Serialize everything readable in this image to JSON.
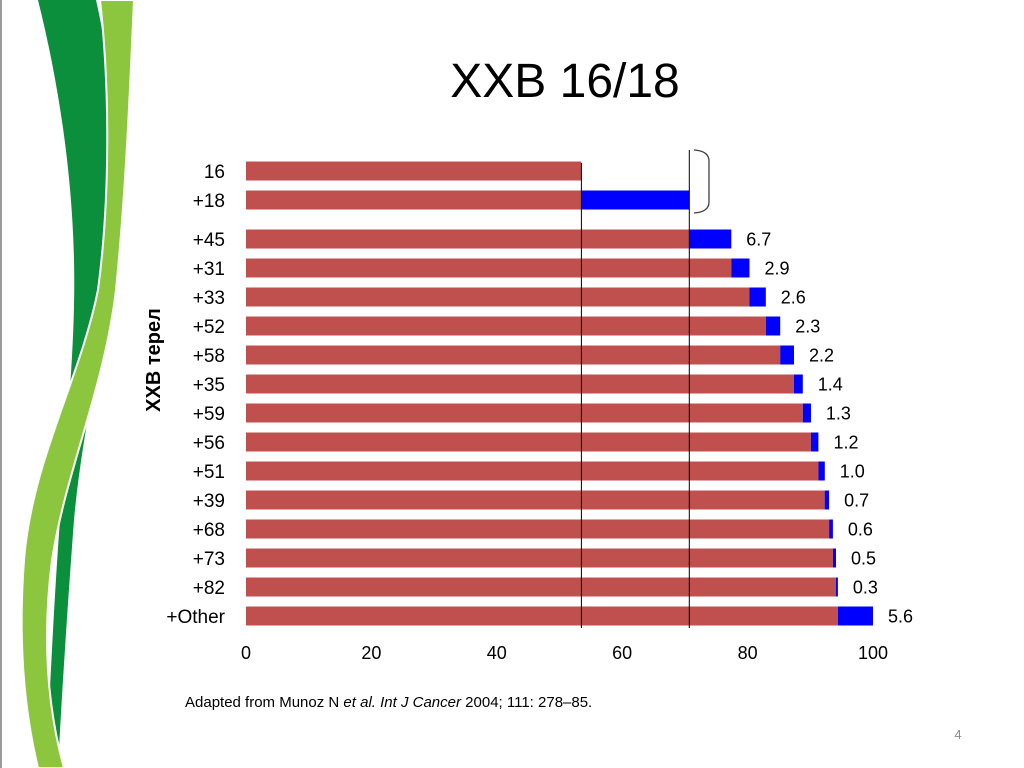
{
  "colors": {
    "swoosh_dark": "#0b8f3d",
    "swoosh_light": "#8cc63f",
    "bracket": "#404040"
  },
  "slide": {
    "page_number": "4"
  },
  "source": {
    "prefix": "Adapted from Munoz N ",
    "authors": "et al.",
    "journal": " Int J Cancer",
    "citation": " 2004; 111: 278–85."
  },
  "chart_data": {
    "type": "bar",
    "horizontal": true,
    "stacked": true,
    "title": "ХХВ 16/18",
    "ylabel": "ХХВ терел",
    "xlim": [
      0,
      100
    ],
    "xticks": [
      0,
      20,
      40,
      60,
      80,
      100
    ],
    "grid": false,
    "categories": [
      "16",
      "+18",
      "+45",
      "+31",
      "+33",
      "+52",
      "+58",
      "+35",
      "+59",
      "+56",
      "+51",
      "+39",
      "+68",
      "+73",
      "+82",
      "+Other"
    ],
    "series": [
      {
        "color": "#c0504d",
        "values": [
          53.5,
          53.5,
          70.7,
          77.4,
          80.3,
          82.9,
          85.2,
          87.4,
          88.8,
          90.1,
          91.3,
          92.3,
          93.0,
          93.6,
          94.1,
          94.4
        ]
      },
      {
        "color": "#0000ff",
        "values": [
          0,
          17.2,
          6.7,
          2.9,
          2.6,
          2.3,
          2.2,
          1.4,
          1.3,
          1.2,
          1.0,
          0.7,
          0.6,
          0.5,
          0.3,
          5.6
        ]
      }
    ],
    "data_labels": [
      null,
      null,
      "6.7",
      "2.9",
      "2.6",
      "2.3",
      "2.2",
      "1.4",
      "1.3",
      "1.2",
      "1.0",
      "0.7",
      "0.6",
      "0.5",
      "0.3",
      "5.6"
    ],
    "reference_lines": [
      53.5,
      70.7
    ]
  }
}
